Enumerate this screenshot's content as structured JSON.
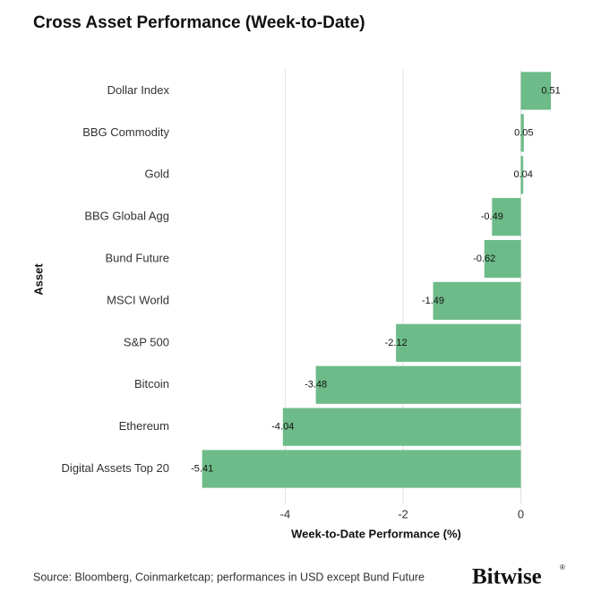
{
  "chart_data": {
    "type": "bar",
    "orientation": "horizontal",
    "title": "Cross Asset Performance (Week-to-Date)",
    "x_label": "Week-to-Date Performance (%)",
    "y_label": "Asset",
    "categories": [
      "Dollar Index",
      "BBG Commodity",
      "Gold",
      "BBG Global Agg",
      "Bund Future",
      "MSCI World",
      "S&P 500",
      "Bitcoin",
      "Ethereum",
      "Digital Assets Top 20"
    ],
    "values": [
      0.51,
      0.05,
      0.04,
      -0.49,
      -0.62,
      -1.49,
      -2.12,
      -3.48,
      -4.04,
      -5.41
    ],
    "color": "#6dbb88",
    "xlim": [
      -5.8,
      0.6
    ],
    "xticks": [
      -4,
      -2,
      0
    ],
    "grid": true,
    "source": "Source: Bloomberg, Coinmarketcap; performances in USD except Bund Future",
    "logo": "Bitwise",
    "logo_mark": "®"
  }
}
